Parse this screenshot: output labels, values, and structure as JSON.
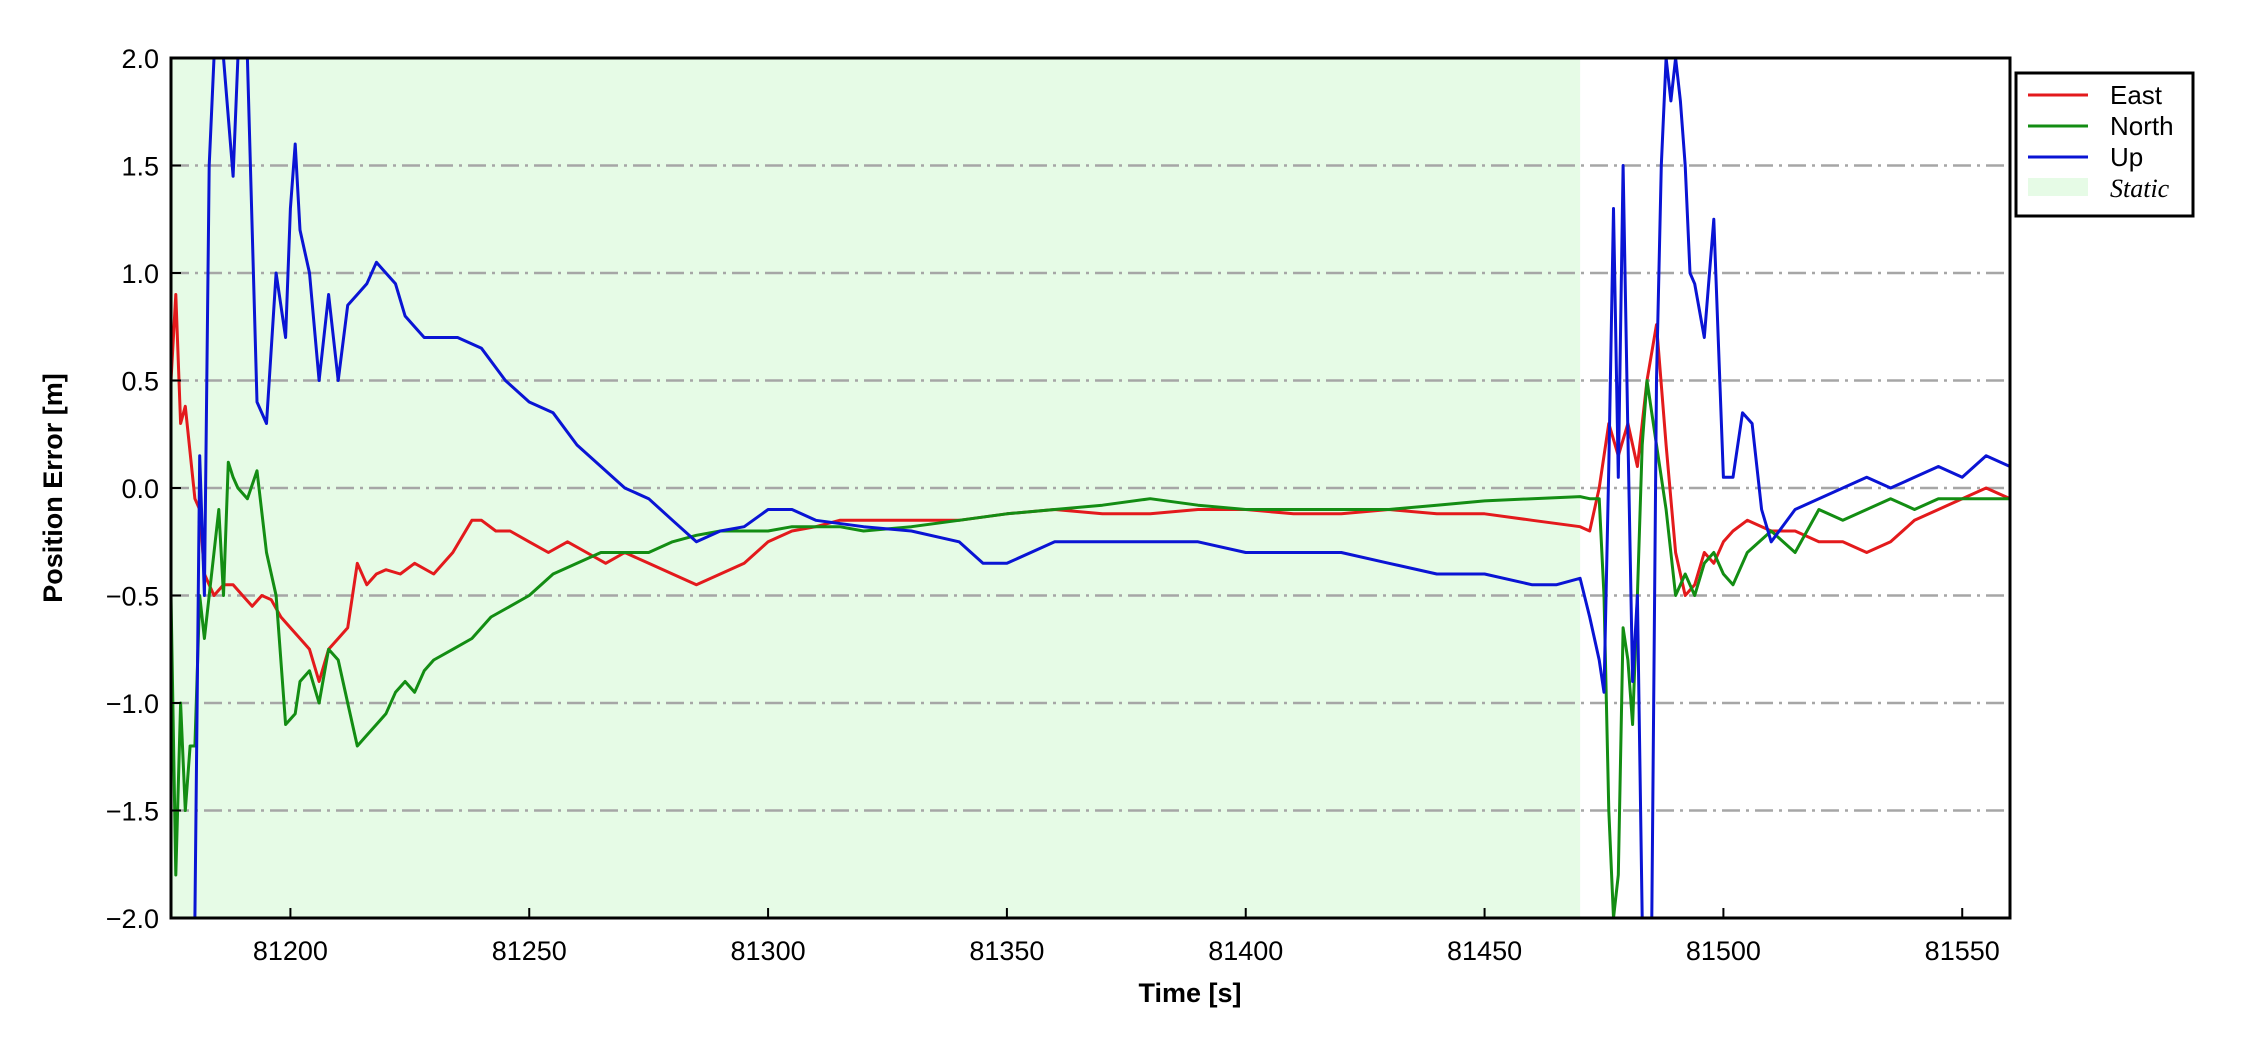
{
  "chart_data": {
    "type": "line",
    "xlabel": "Time [s]",
    "ylabel": "Position Error [m]",
    "xlim": [
      81175,
      81560
    ],
    "ylim": [
      -2.0,
      2.0
    ],
    "x_ticks": [
      81200,
      81250,
      81300,
      81350,
      81400,
      81450,
      81500,
      81550
    ],
    "x_tick_labels": [
      "81200",
      "81250",
      "81300",
      "81350",
      "81400",
      "81450",
      "81500",
      "81550"
    ],
    "y_ticks": [
      -2.0,
      -1.5,
      -1.0,
      -0.5,
      0.0,
      0.5,
      1.0,
      1.5,
      2.0
    ],
    "y_tick_labels": [
      "−2.0",
      "−1.5",
      "−1.0",
      "−0.5",
      "0.0",
      "0.5",
      "1.0",
      "1.5",
      "2.0"
    ],
    "grid": "horizontal dash-dot",
    "legend_position": "top-right",
    "shaded_region": {
      "name": "Static",
      "x_start": 81175,
      "x_end": 81470,
      "color": "#e6fbe6"
    },
    "colors": {
      "grid": "#a6a6a6",
      "frame": "#000000"
    },
    "series": [
      {
        "name": "East",
        "color": "#e31a1c",
        "x": [
          81175,
          81176,
          81177,
          81178,
          81180,
          81181,
          81182,
          81184,
          81186,
          81188,
          81190,
          81192,
          81194,
          81196,
          81198,
          81200,
          81202,
          81204,
          81206,
          81208,
          81210,
          81212,
          81214,
          81216,
          81218,
          81220,
          81223,
          81226,
          81230,
          81234,
          81238,
          81240,
          81243,
          81246,
          81250,
          81254,
          81258,
          81262,
          81266,
          81270,
          81275,
          81280,
          81285,
          81290,
          81295,
          81300,
          81305,
          81310,
          81315,
          81320,
          81330,
          81340,
          81350,
          81360,
          81370,
          81380,
          81390,
          81400,
          81410,
          81420,
          81430,
          81440,
          81450,
          81460,
          81470,
          81472,
          81474,
          81476,
          81478,
          81480,
          81482,
          81484,
          81486,
          81488,
          81490,
          81492,
          81494,
          81496,
          81498,
          81500,
          81502,
          81505,
          81510,
          81515,
          81520,
          81525,
          81530,
          81535,
          81540,
          81545,
          81550,
          81555,
          81560
        ],
        "values": [
          0.5,
          0.9,
          0.3,
          0.38,
          -0.05,
          -0.1,
          -0.4,
          -0.5,
          -0.45,
          -0.45,
          -0.5,
          -0.55,
          -0.5,
          -0.52,
          -0.6,
          -0.65,
          -0.7,
          -0.75,
          -0.9,
          -0.75,
          -0.7,
          -0.65,
          -0.35,
          -0.45,
          -0.4,
          -0.38,
          -0.4,
          -0.35,
          -0.4,
          -0.3,
          -0.15,
          -0.15,
          -0.2,
          -0.2,
          -0.25,
          -0.3,
          -0.25,
          -0.3,
          -0.35,
          -0.3,
          -0.35,
          -0.4,
          -0.45,
          -0.4,
          -0.35,
          -0.25,
          -0.2,
          -0.18,
          -0.15,
          -0.15,
          -0.15,
          -0.15,
          -0.12,
          -0.1,
          -0.12,
          -0.12,
          -0.1,
          -0.1,
          -0.12,
          -0.12,
          -0.1,
          -0.12,
          -0.12,
          -0.15,
          -0.18,
          -0.2,
          0.0,
          0.3,
          0.15,
          0.3,
          0.1,
          0.5,
          0.76,
          0.2,
          -0.3,
          -0.5,
          -0.45,
          -0.3,
          -0.35,
          -0.25,
          -0.2,
          -0.15,
          -0.2,
          -0.2,
          -0.25,
          -0.25,
          -0.3,
          -0.25,
          -0.15,
          -0.1,
          -0.05,
          0.0,
          -0.05
        ]
      },
      {
        "name": "North",
        "color": "#138d13",
        "x": [
          81175,
          81176,
          81177,
          81178,
          81179,
          81180,
          81181,
          81182,
          81183,
          81184,
          81185,
          81186,
          81187,
          81188,
          81189,
          81191,
          81193,
          81195,
          81197,
          81199,
          81201,
          81202,
          81204,
          81206,
          81208,
          81210,
          81212,
          81214,
          81216,
          81218,
          81220,
          81222,
          81224,
          81226,
          81228,
          81230,
          81234,
          81238,
          81242,
          81246,
          81250,
          81255,
          81260,
          81265,
          81270,
          81275,
          81280,
          81285,
          81290,
          81295,
          81300,
          81305,
          81310,
          81315,
          81320,
          81330,
          81340,
          81350,
          81360,
          81370,
          81380,
          81390,
          81400,
          81410,
          81420,
          81430,
          81440,
          81450,
          81460,
          81470,
          81472,
          81474,
          81475,
          81476,
          81477,
          81478,
          81479,
          81480,
          81481,
          81482,
          81483,
          81484,
          81486,
          81488,
          81490,
          81492,
          81494,
          81496,
          81498,
          81500,
          81502,
          81505,
          81510,
          81515,
          81520,
          81525,
          81530,
          81535,
          81540,
          81545,
          81550,
          81555,
          81560
        ],
        "values": [
          -0.5,
          -1.8,
          -1.0,
          -1.5,
          -1.2,
          -1.2,
          -0.5,
          -0.7,
          -0.5,
          -0.3,
          -0.1,
          -0.5,
          0.12,
          0.05,
          0.0,
          -0.05,
          0.08,
          -0.3,
          -0.5,
          -1.1,
          -1.05,
          -0.9,
          -0.85,
          -1.0,
          -0.75,
          -0.8,
          -1.0,
          -1.2,
          -1.15,
          -1.1,
          -1.05,
          -0.95,
          -0.9,
          -0.95,
          -0.85,
          -0.8,
          -0.75,
          -0.7,
          -0.6,
          -0.55,
          -0.5,
          -0.4,
          -0.35,
          -0.3,
          -0.3,
          -0.3,
          -0.25,
          -0.22,
          -0.2,
          -0.2,
          -0.2,
          -0.18,
          -0.18,
          -0.18,
          -0.2,
          -0.18,
          -0.15,
          -0.12,
          -0.1,
          -0.08,
          -0.05,
          -0.08,
          -0.1,
          -0.1,
          -0.1,
          -0.1,
          -0.08,
          -0.06,
          -0.05,
          -0.04,
          -0.05,
          -0.05,
          -0.5,
          -1.5,
          -2.0,
          -1.8,
          -0.65,
          -0.8,
          -1.1,
          -0.5,
          0.2,
          0.5,
          0.2,
          -0.1,
          -0.5,
          -0.4,
          -0.5,
          -0.35,
          -0.3,
          -0.4,
          -0.45,
          -0.3,
          -0.2,
          -0.3,
          -0.1,
          -0.15,
          -0.1,
          -0.05,
          -0.1,
          -0.05,
          -0.05,
          -0.05,
          -0.05
        ]
      },
      {
        "name": "Up",
        "color": "#0a14d4",
        "x": [
          81180,
          81181,
          81182,
          81183,
          81184,
          81186,
          81188,
          81189,
          81190,
          81191,
          81193,
          81195,
          81197,
          81199,
          81200,
          81201,
          81202,
          81204,
          81206,
          81208,
          81210,
          81212,
          81214,
          81216,
          81218,
          81220,
          81222,
          81224,
          81226,
          81228,
          81230,
          81235,
          81240,
          81245,
          81250,
          81255,
          81260,
          81265,
          81270,
          81275,
          81280,
          81285,
          81290,
          81295,
          81300,
          81305,
          81310,
          81320,
          81330,
          81340,
          81345,
          81350,
          81360,
          81370,
          81380,
          81390,
          81400,
          81410,
          81420,
          81430,
          81440,
          81450,
          81460,
          81465,
          81470,
          81472,
          81474,
          81475,
          81476,
          81477,
          81478,
          81479,
          81480,
          81481,
          81482,
          81483,
          81484,
          81485,
          81486,
          81487,
          81488,
          81489,
          81490,
          81491,
          81492,
          81493,
          81494,
          81496,
          81498,
          81500,
          81502,
          81504,
          81506,
          81508,
          81510,
          81515,
          81520,
          81525,
          81530,
          81535,
          81540,
          81545,
          81550,
          81555,
          81560
        ],
        "values": [
          -2.0,
          0.15,
          -0.5,
          1.5,
          2.0,
          2.0,
          1.45,
          2.0,
          2.0,
          2.0,
          0.4,
          0.3,
          1.0,
          0.7,
          1.3,
          1.6,
          1.2,
          1.0,
          0.5,
          0.9,
          0.5,
          0.85,
          0.9,
          0.95,
          1.05,
          1.0,
          0.95,
          0.8,
          0.75,
          0.7,
          0.7,
          0.7,
          0.65,
          0.5,
          0.4,
          0.35,
          0.2,
          0.1,
          0.0,
          -0.05,
          -0.15,
          -0.25,
          -0.2,
          -0.18,
          -0.1,
          -0.1,
          -0.15,
          -0.18,
          -0.2,
          -0.25,
          -0.35,
          -0.35,
          -0.25,
          -0.25,
          -0.25,
          -0.25,
          -0.3,
          -0.3,
          -0.3,
          -0.35,
          -0.4,
          -0.4,
          -0.45,
          -0.45,
          -0.42,
          -0.6,
          -0.8,
          -0.95,
          0.1,
          1.3,
          0.05,
          1.5,
          0.25,
          -0.9,
          -0.5,
          -2.0,
          -2.0,
          -2.0,
          0.5,
          1.5,
          2.0,
          1.8,
          2.0,
          1.8,
          1.5,
          1.0,
          0.95,
          0.7,
          1.25,
          0.05,
          0.05,
          0.35,
          0.3,
          -0.1,
          -0.25,
          -0.1,
          -0.05,
          0.0,
          0.05,
          0.0,
          0.05,
          0.1,
          0.05,
          0.15,
          0.1
        ]
      }
    ]
  },
  "legend": {
    "static_label": "Static"
  }
}
